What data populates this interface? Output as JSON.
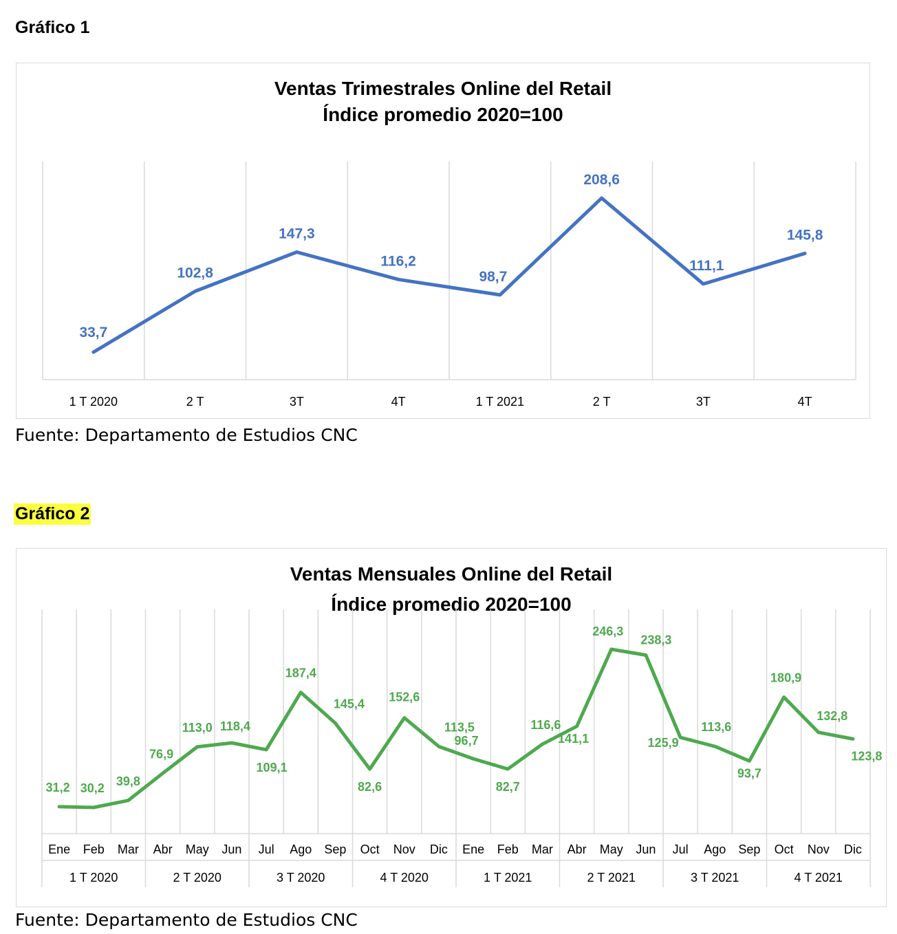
{
  "heading1": "Gráfico 1",
  "heading2": "Gráfico 2",
  "source1": "Fuente: Departamento de Estudios CNC",
  "source2": "Fuente: Departamento de Estudios CNC",
  "colors": {
    "series1": "#4472c4",
    "series2": "#4ea94e",
    "highlight": "#fbff3f",
    "grid": "#d9d9d9"
  },
  "chart_data": [
    {
      "type": "line",
      "title_lines": [
        "Ventas Trimestrales Online del Retail",
        "Índice promedio 2020=100"
      ],
      "categories": [
        "1 T 2020",
        "2 T",
        "3T",
        "4T",
        "1 T 2021",
        "2 T",
        "3T",
        "4T"
      ],
      "series": [
        {
          "values": [
            33.7,
            102.8,
            147.3,
            116.2,
            98.7,
            208.6,
            111.1,
            145.8
          ],
          "labels": [
            "33,7",
            "102,8",
            "147,3",
            "116,2",
            "98,7",
            "208,6",
            "111,1",
            "145,8"
          ]
        }
      ],
      "ylim": [
        0,
        230
      ],
      "grid": "vertical",
      "data_labels": true
    },
    {
      "type": "line",
      "title_lines": [
        "Ventas Mensuales Online del Retail",
        "Índice promedio 2020=100"
      ],
      "categories": [
        "Ene",
        "Feb",
        "Mar",
        "Abr",
        "May",
        "Jun",
        "Jul",
        "Ago",
        "Sep",
        "Oct",
        "Nov",
        "Dic",
        "Ene",
        "Feb",
        "Mar",
        "Abr",
        "May",
        "Jun",
        "Jul",
        "Ago",
        "Sep",
        "Oct",
        "Nov",
        "Dic"
      ],
      "group_labels": [
        "1 T 2020",
        "2 T 2020",
        "3 T 2020",
        "4 T 2020",
        "1 T 2021",
        "2 T 2021",
        "3 T 2021",
        "4 T 2021"
      ],
      "series": [
        {
          "values": [
            31.2,
            30.2,
            39.8,
            76.9,
            113.0,
            118.4,
            109.1,
            187.4,
            145.4,
            82.6,
            152.6,
            113.5,
            96.7,
            82.7,
            116.6,
            141.1,
            246.3,
            238.3,
            125.9,
            113.6,
            93.7,
            180.9,
            132.8,
            123.8
          ],
          "labels": [
            "31,2",
            "30,2",
            "39,8",
            "76,9",
            "113,0",
            "118,4",
            "109,1",
            "187,4",
            "145,4",
            "82,6",
            "152,6",
            "113,5",
            "96,7",
            "82,7",
            "116,6",
            "141,1",
            "246,3",
            "238,3",
            "125,9",
            "113,6",
            "93,7",
            "180,9",
            "132,8",
            "123,8"
          ]
        }
      ],
      "ylim": [
        0,
        275
      ],
      "grid": "vertical",
      "data_labels": true
    }
  ]
}
